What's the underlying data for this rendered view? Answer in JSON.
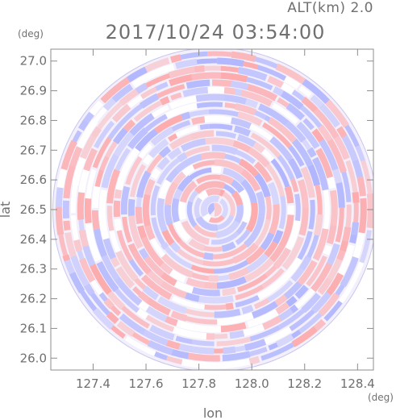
{
  "header": {
    "altitude_label": "ALT(km) 2.0",
    "datetime": "2017/10/24 03:54:00"
  },
  "chart_data": {
    "type": "heatmap",
    "title": "2017/10/24 03:54:00",
    "xlabel": "lon",
    "ylabel": "lat",
    "xunit": "(deg)",
    "yunit": "(deg)",
    "xlim": [
      127.24,
      128.46
    ],
    "ylim": [
      25.96,
      27.04
    ],
    "xticks": [
      "127.4",
      "127.6",
      "127.8",
      "128.0",
      "128.2",
      "128.4"
    ],
    "yticks": [
      "26.0",
      "26.1",
      "26.2",
      "26.3",
      "26.4",
      "26.5",
      "26.6",
      "26.7",
      "26.8",
      "26.9",
      "27.0"
    ],
    "field": {
      "shape": "circle",
      "center": {
        "lon": 127.86,
        "lat": 26.5
      },
      "radius_lat_deg": 0.545,
      "colormap": [
        "#9aa2ff",
        "#ffffff",
        "#ff9a9a"
      ],
      "pattern": "concentric arcs of alternating positive (red) and negative (blue) values"
    },
    "grid": false,
    "legend": "none"
  }
}
